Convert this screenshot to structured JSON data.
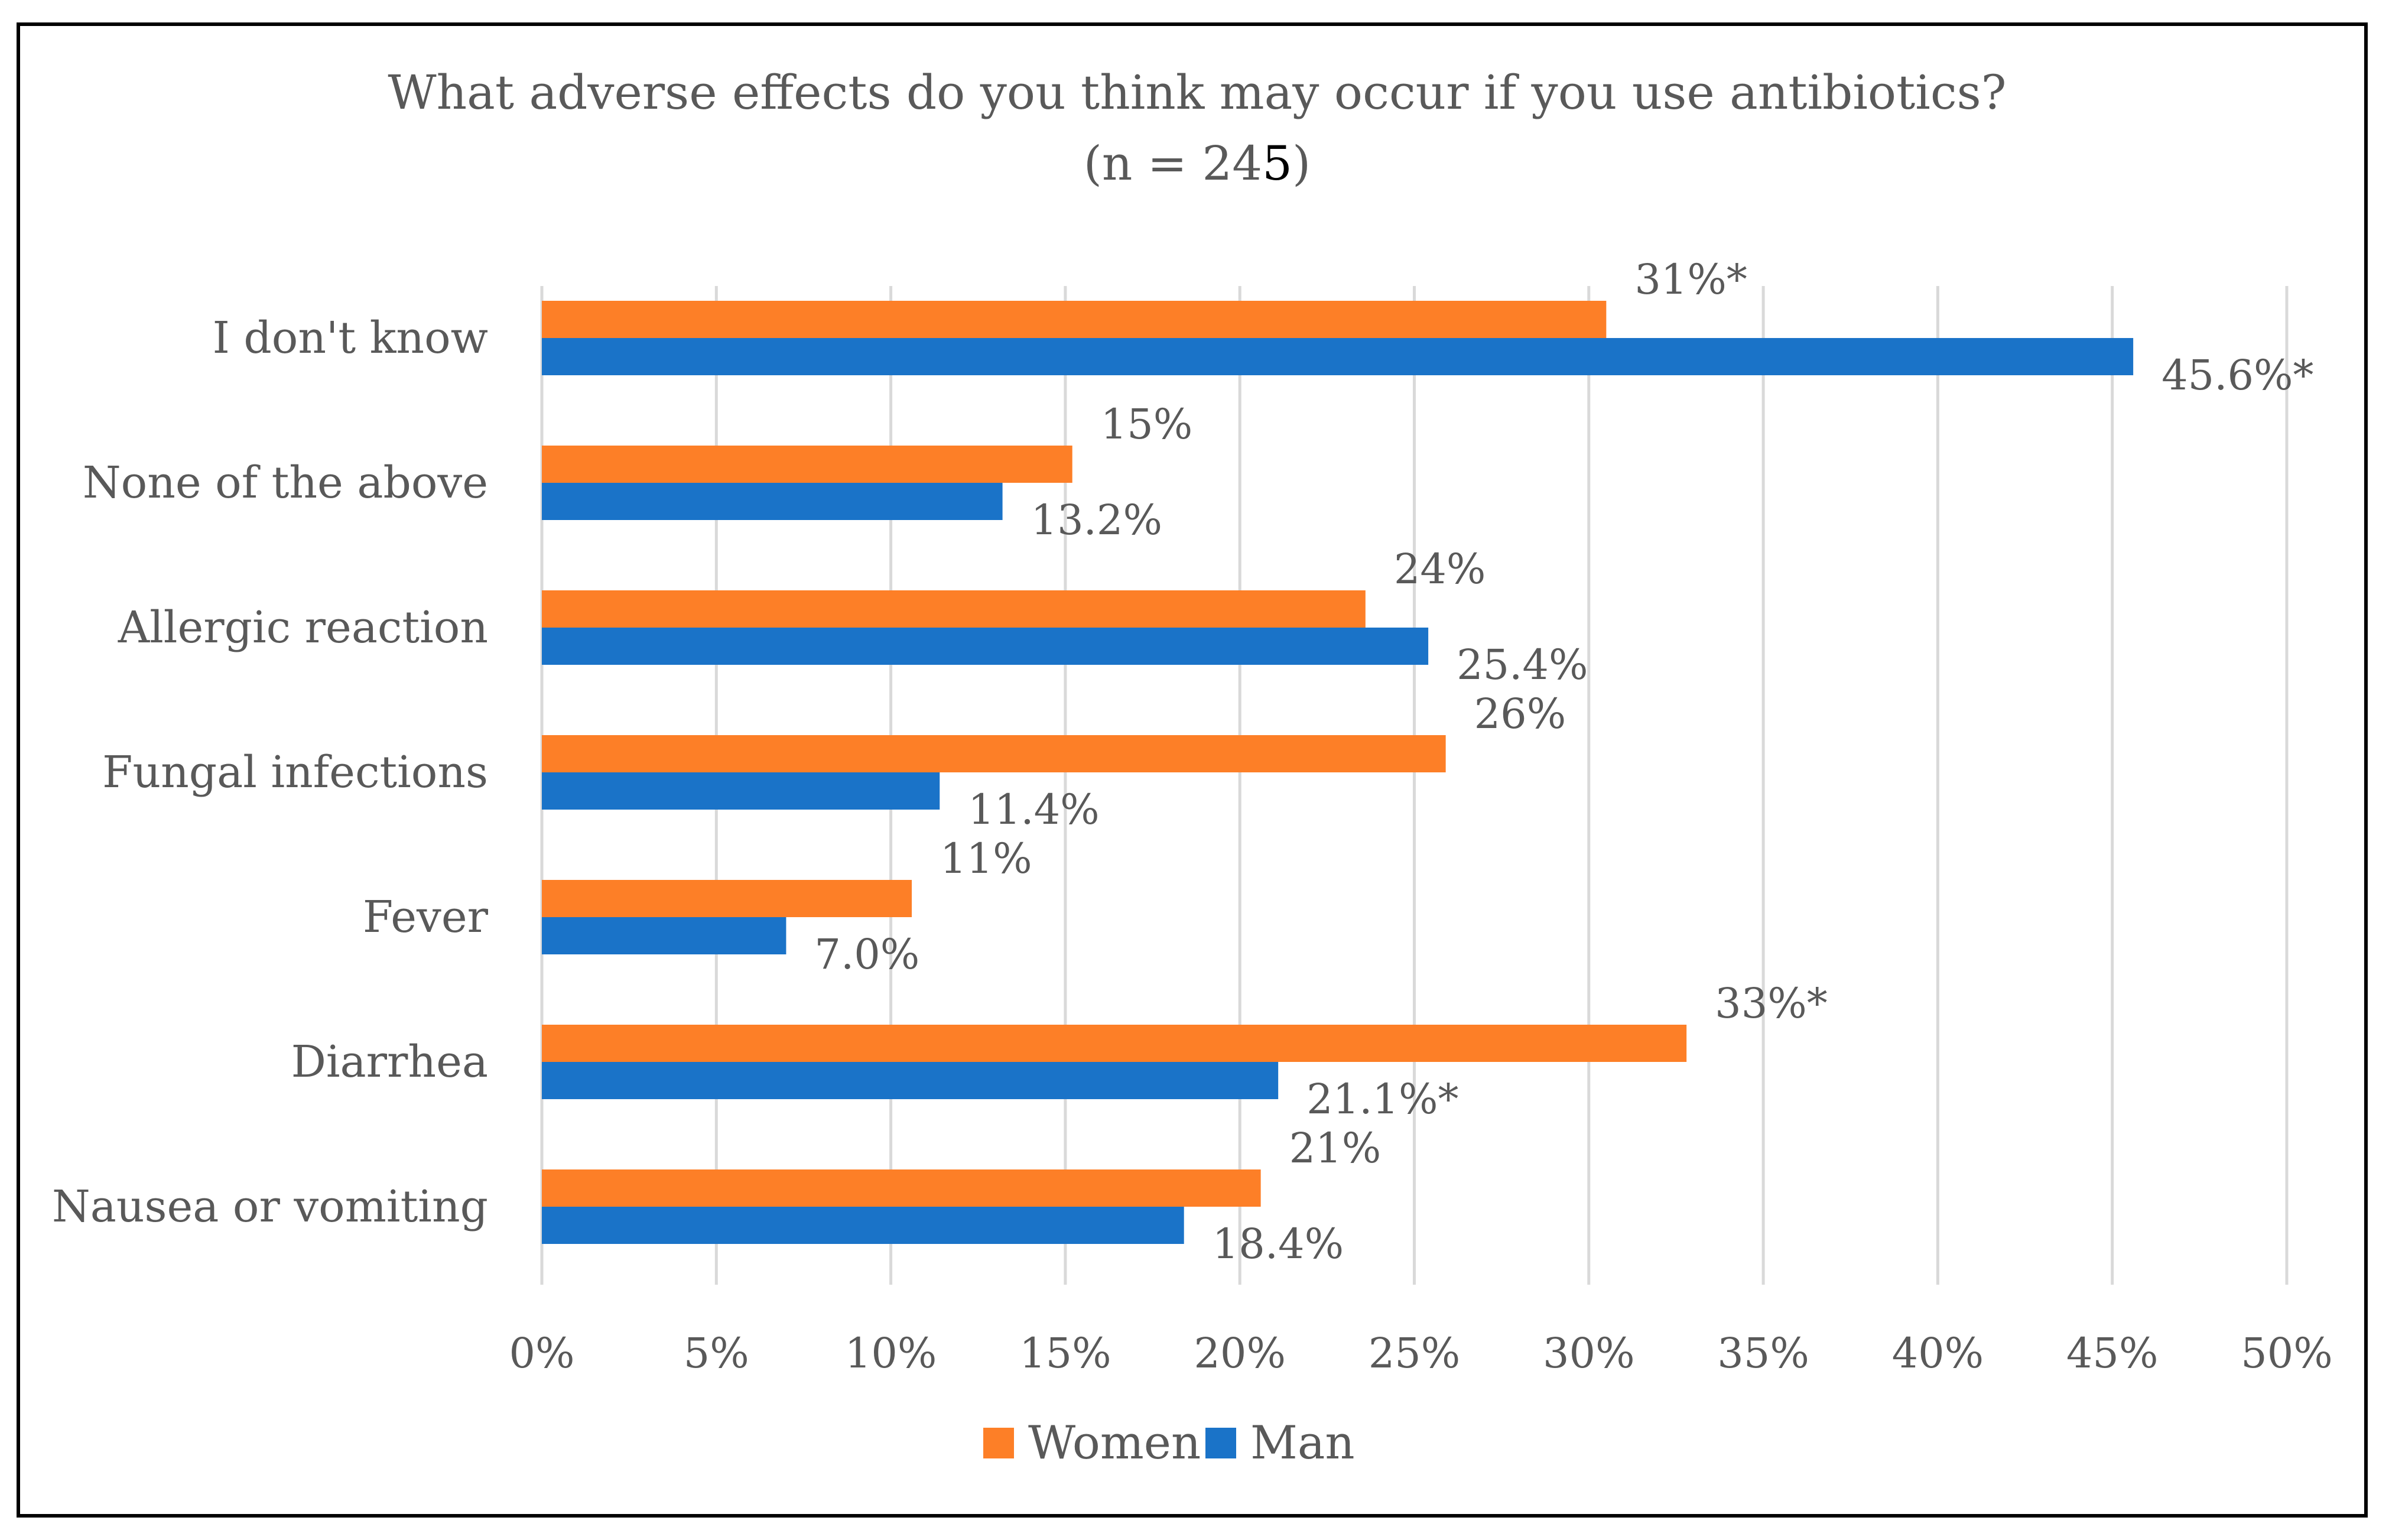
{
  "chart_data": {
    "type": "bar",
    "orientation": "horizontal",
    "title": "What adverse effects do you think may occur if you use antibiotics?",
    "subtitle_parts": [
      "(n = 24",
      "5",
      ")"
    ],
    "categories": [
      "I don't know",
      "None of the above",
      "Allergic reaction",
      "Fungal infections",
      "Fever",
      "Diarrhea",
      "Nausea or vomiting"
    ],
    "series": [
      {
        "name": "Women",
        "color": "#FD7F27",
        "values": [
          30.5,
          15.2,
          23.6,
          25.9,
          10.6,
          32.8,
          20.6
        ],
        "labels": [
          "31%*",
          "15%",
          "24%",
          "26%",
          "11%",
          "33%*",
          "21%"
        ]
      },
      {
        "name": "Man",
        "color": "#1A73C8",
        "values": [
          45.6,
          13.2,
          25.4,
          11.4,
          7.0,
          21.1,
          18.4
        ],
        "labels": [
          "45.6%*",
          "13.2%",
          "25.4%",
          "11.4%",
          "7.0%",
          "21.1%*",
          "18.4%"
        ]
      }
    ],
    "xlim": [
      0,
      50
    ],
    "xticks": [
      0,
      5,
      10,
      15,
      20,
      25,
      30,
      35,
      40,
      45,
      50
    ],
    "xtick_labels": [
      "0%",
      "5%",
      "10%",
      "15%",
      "20%",
      "25%",
      "30%",
      "35%",
      "40%",
      "45%",
      "50%"
    ],
    "grid": "vertical",
    "legend_position": "bottom"
  }
}
